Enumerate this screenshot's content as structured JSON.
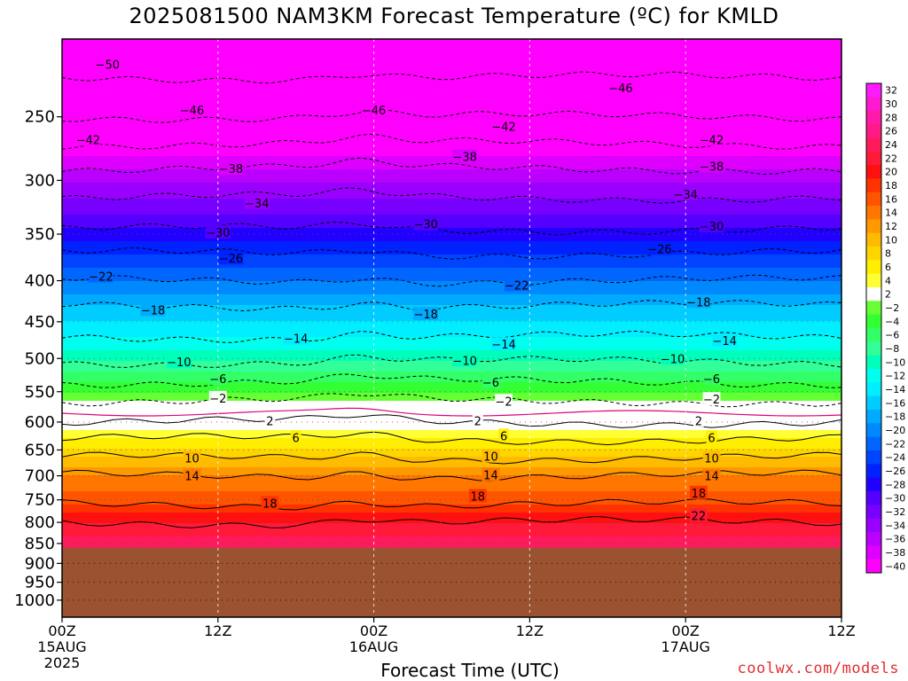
{
  "chart_data": {
    "type": "heatmap",
    "title": "2025081500 NAM3KM Forecast Temperature (ºC) for KMLD",
    "xlabel": "Forecast Time (UTC)",
    "ylabel": "",
    "y_scale": "log-pressure",
    "y_axis_range": [
      1050,
      200
    ],
    "x_axis_range": [
      0,
      60
    ],
    "grid": true,
    "x_ticks": [
      {
        "value": 0,
        "label": "00Z",
        "date": "15AUG",
        "year": "2025"
      },
      {
        "value": 12,
        "label": "12Z",
        "date": "",
        "year": ""
      },
      {
        "value": 24,
        "label": "00Z",
        "date": "16AUG",
        "year": ""
      },
      {
        "value": 36,
        "label": "12Z",
        "date": "",
        "year": ""
      },
      {
        "value": 48,
        "label": "00Z",
        "date": "17AUG",
        "year": ""
      },
      {
        "value": 60,
        "label": "12Z",
        "date": "",
        "year": ""
      }
    ],
    "y_ticks": [
      250,
      300,
      350,
      400,
      450,
      500,
      550,
      600,
      650,
      700,
      750,
      800,
      850,
      900,
      950,
      1000
    ],
    "ground_pressure": 860,
    "freezing_level_hpa": 585,
    "temperature_profile": [
      {
        "p": 210,
        "t": -52
      },
      {
        "p": 250,
        "t": -46
      },
      {
        "p": 270,
        "t": -42
      },
      {
        "p": 290,
        "t": -38
      },
      {
        "p": 315,
        "t": -34
      },
      {
        "p": 345,
        "t": -30
      },
      {
        "p": 370,
        "t": -26
      },
      {
        "p": 400,
        "t": -22
      },
      {
        "p": 430,
        "t": -18
      },
      {
        "p": 470,
        "t": -14
      },
      {
        "p": 505,
        "t": -10
      },
      {
        "p": 535,
        "t": -6
      },
      {
        "p": 565,
        "t": -2
      },
      {
        "p": 585,
        "t": 0
      },
      {
        "p": 600,
        "t": 2
      },
      {
        "p": 630,
        "t": 6
      },
      {
        "p": 665,
        "t": 10
      },
      {
        "p": 700,
        "t": 14
      },
      {
        "p": 760,
        "t": 18
      },
      {
        "p": 800,
        "t": 22
      },
      {
        "p": 860,
        "t": 26
      }
    ],
    "contour_labels": [
      {
        "t": -50,
        "x": 3.5,
        "p": 215
      },
      {
        "t": -46,
        "x": 10,
        "p": 245
      },
      {
        "t": -46,
        "x": 24,
        "p": 245
      },
      {
        "t": -46,
        "x": 43,
        "p": 230
      },
      {
        "t": -42,
        "x": 2,
        "p": 267
      },
      {
        "t": -42,
        "x": 34,
        "p": 257
      },
      {
        "t": -42,
        "x": 50,
        "p": 267
      },
      {
        "t": -38,
        "x": 13,
        "p": 290
      },
      {
        "t": -38,
        "x": 31,
        "p": 280
      },
      {
        "t": -38,
        "x": 50,
        "p": 288
      },
      {
        "t": -34,
        "x": 15,
        "p": 320
      },
      {
        "t": -34,
        "x": 48,
        "p": 312
      },
      {
        "t": -30,
        "x": 12,
        "p": 348
      },
      {
        "t": -30,
        "x": 28,
        "p": 340
      },
      {
        "t": -30,
        "x": 50,
        "p": 342
      },
      {
        "t": -26,
        "x": 13,
        "p": 375
      },
      {
        "t": -26,
        "x": 46,
        "p": 365
      },
      {
        "t": -22,
        "x": 3,
        "p": 395
      },
      {
        "t": -22,
        "x": 35,
        "p": 405
      },
      {
        "t": -18,
        "x": 7,
        "p": 435
      },
      {
        "t": -18,
        "x": 28,
        "p": 440
      },
      {
        "t": -18,
        "x": 49,
        "p": 425
      },
      {
        "t": -14,
        "x": 18,
        "p": 472
      },
      {
        "t": -14,
        "x": 34,
        "p": 480
      },
      {
        "t": -14,
        "x": 51,
        "p": 475
      },
      {
        "t": -10,
        "x": 9,
        "p": 505
      },
      {
        "t": -10,
        "x": 31,
        "p": 503
      },
      {
        "t": -10,
        "x": 47,
        "p": 500
      },
      {
        "t": -6,
        "x": 12,
        "p": 530
      },
      {
        "t": -6,
        "x": 33,
        "p": 535
      },
      {
        "t": -6,
        "x": 50,
        "p": 530
      },
      {
        "t": -2,
        "x": 12,
        "p": 560
      },
      {
        "t": -2,
        "x": 34,
        "p": 565
      },
      {
        "t": -2,
        "x": 50,
        "p": 562
      },
      {
        "t": 2,
        "x": 16,
        "p": 598
      },
      {
        "t": 2,
        "x": 32,
        "p": 598
      },
      {
        "t": 2,
        "x": 49,
        "p": 598
      },
      {
        "t": 6,
        "x": 18,
        "p": 627
      },
      {
        "t": 6,
        "x": 34,
        "p": 624
      },
      {
        "t": 6,
        "x": 50,
        "p": 627
      },
      {
        "t": 10,
        "x": 10,
        "p": 665
      },
      {
        "t": 10,
        "x": 33,
        "p": 662
      },
      {
        "t": 10,
        "x": 50,
        "p": 665
      },
      {
        "t": 14,
        "x": 10,
        "p": 700
      },
      {
        "t": 14,
        "x": 33,
        "p": 698
      },
      {
        "t": 14,
        "x": 50,
        "p": 700
      },
      {
        "t": 18,
        "x": 16,
        "p": 757
      },
      {
        "t": 18,
        "x": 32,
        "p": 742
      },
      {
        "t": 18,
        "x": 49,
        "p": 735
      },
      {
        "t": 22,
        "x": 49,
        "p": 785
      }
    ],
    "colorbar": {
      "labels": [
        "32",
        "30",
        "28",
        "26",
        "24",
        "22",
        "20",
        "18",
        "16",
        "14",
        "12",
        "10",
        "8",
        "6",
        "4",
        "2",
        "−2",
        "−4",
        "−6",
        "−8",
        "−10",
        "−12",
        "−14",
        "−16",
        "−18",
        "−20",
        "−22",
        "−24",
        "−26",
        "−28",
        "−30",
        "−32",
        "−34",
        "−36",
        "−38",
        "−40"
      ],
      "colors": [
        "#ff1aff",
        "#ff19d0",
        "#ff1aa8",
        "#ff1a85",
        "#ff1a5e",
        "#ff1a3a",
        "#ff1010",
        "#ff3300",
        "#ff5500",
        "#ff7700",
        "#ff9900",
        "#ffbb00",
        "#ffd500",
        "#ffee00",
        "#ffff33",
        "#ffffff",
        "#66ff33",
        "#33ff33",
        "#33ff66",
        "#33ff99",
        "#00ffbb",
        "#00ffee",
        "#00eeff",
        "#00ccff",
        "#00aaff",
        "#0088ff",
        "#0066ff",
        "#0044ff",
        "#0022ff",
        "#2200ff",
        "#5500ff",
        "#7700ff",
        "#9900ff",
        "#bb00ff",
        "#dd00ff",
        "#ff00ff"
      ]
    }
  },
  "credit": "coolwx.com/models"
}
